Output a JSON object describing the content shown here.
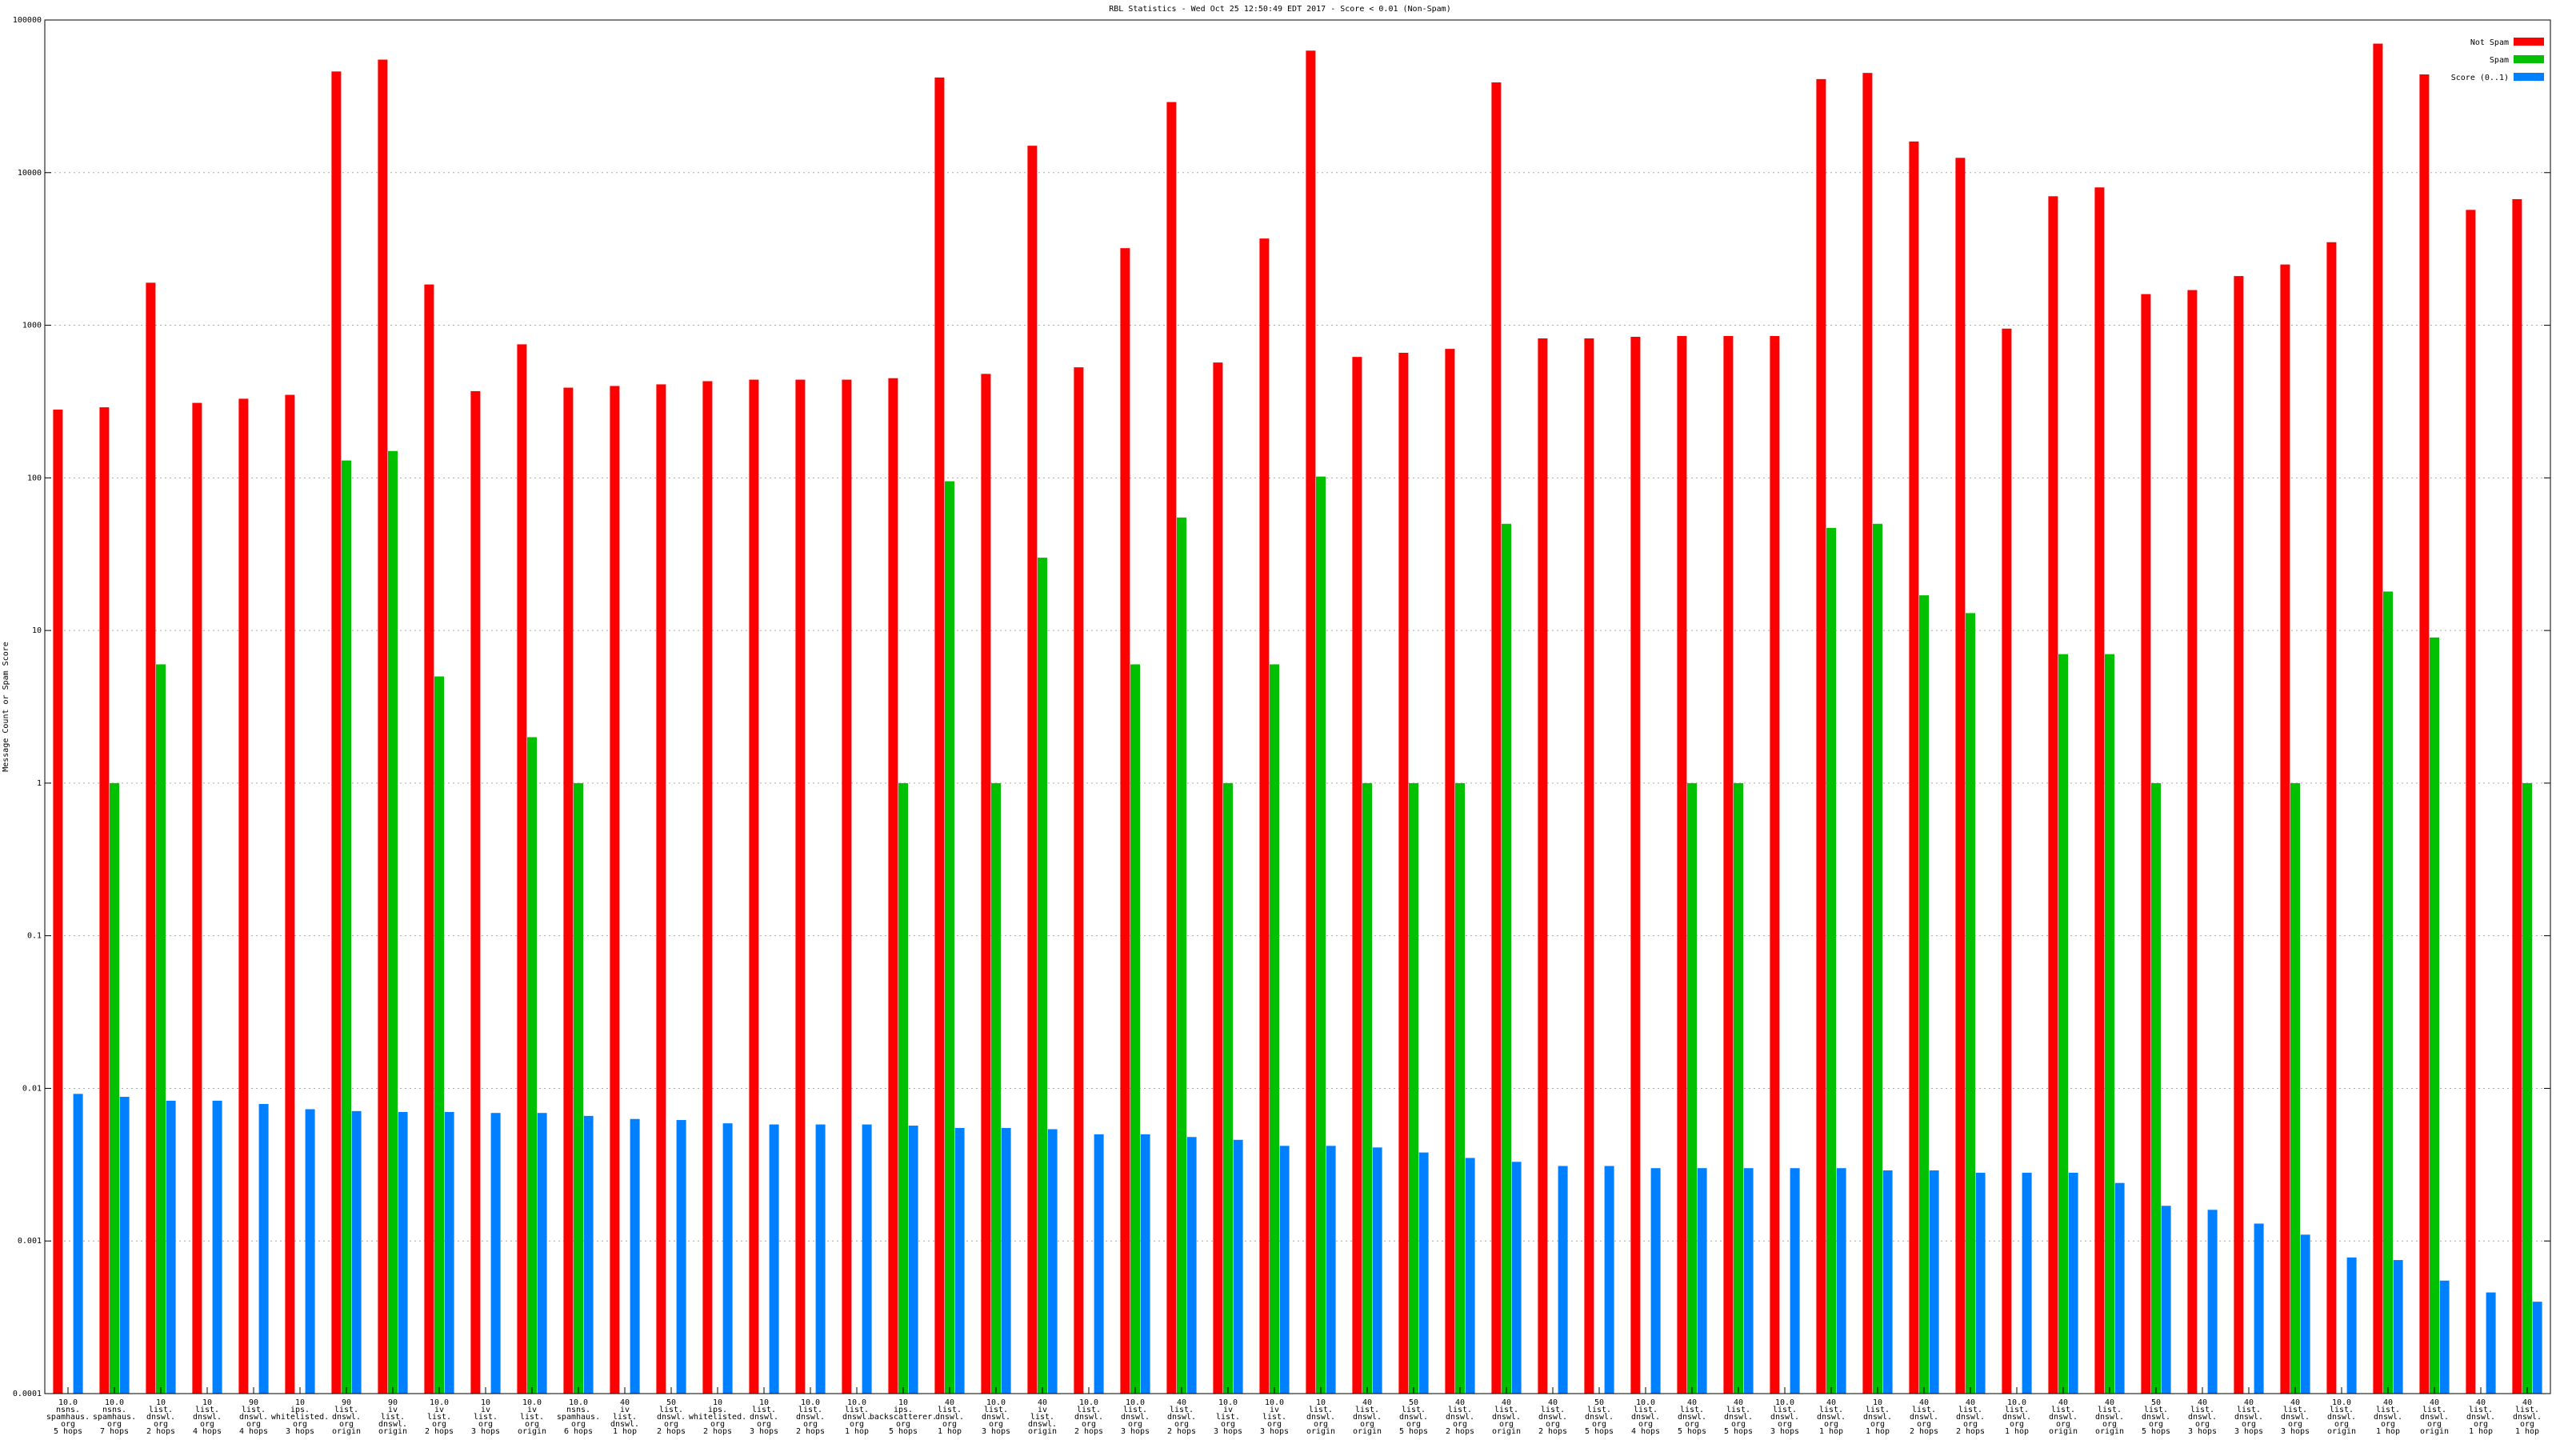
{
  "chart_data": {
    "type": "bar",
    "title": "RBL Statistics - Wed Oct 25 12:50:49 EDT 2017 - Score < 0.01 (Non-Spam)",
    "ylabel": "Message Count or Spam Score",
    "xlabel": "",
    "yscale": "log",
    "ylim": [
      0.0001,
      100000
    ],
    "yticks": [
      "100000",
      "10000",
      "1000",
      "100",
      "10",
      "1",
      "0.1",
      "0.01",
      "0.001",
      "0.0001"
    ],
    "grid": true,
    "legend_position": "top-right",
    "categories": [
      [
        "10.0",
        "nsns.",
        "spamhaus.",
        "org",
        "5 hops"
      ],
      [
        "10.0",
        "nsns.",
        "spamhaus.",
        "org",
        "7 hops"
      ],
      [
        "10",
        "list.",
        "dnswl.",
        "org",
        "2 hops"
      ],
      [
        "10",
        "list.",
        "dnswl.",
        "org",
        "4 hops"
      ],
      [
        "90",
        "list.",
        "dnswl.",
        "org",
        "4 hops"
      ],
      [
        "10",
        "ips.",
        "whitelisted.",
        "org",
        "3 hops"
      ],
      [
        "90",
        "list.",
        "dnswl.",
        "org",
        "origin"
      ],
      [
        "90",
        "iv",
        "list.",
        "dnswl.",
        "origin"
      ],
      [
        "10.0",
        "iv",
        "list.",
        "org",
        "2 hops"
      ],
      [
        "10",
        "iv",
        "list.",
        "org",
        "3 hops"
      ],
      [
        "10.0",
        "iv",
        "list.",
        "org",
        "origin"
      ],
      [
        "10.0",
        "nsns.",
        "spamhaus.",
        "org",
        "6 hops"
      ],
      [
        "40",
        "iv",
        "list.",
        "dnswl.",
        "1 hop"
      ],
      [
        "50",
        "list.",
        "dnswl.",
        "org",
        "2 hops"
      ],
      [
        "10",
        "ips.",
        "whitelisted.",
        "org",
        "2 hops"
      ],
      [
        "10",
        "list.",
        "dnswl.",
        "org",
        "3 hops"
      ],
      [
        "10.0",
        "list.",
        "dnswl.",
        "org",
        "2 hops"
      ],
      [
        "10.0",
        "list.",
        "dnswl.",
        "org",
        "1 hop"
      ],
      [
        "10",
        "ips.",
        "backscatterer.",
        "org",
        "5 hops"
      ],
      [
        "40",
        "list.",
        "dnswl.",
        "org",
        "1 hop"
      ],
      [
        "10.0",
        "list.",
        "dnswl.",
        "org",
        "3 hops"
      ],
      [
        "40",
        "iv",
        "list.",
        "dnswl.",
        "origin"
      ],
      [
        "10.0",
        "list.",
        "dnswl.",
        "org",
        "2 hops"
      ],
      [
        "10.0",
        "list.",
        "dnswl.",
        "org",
        "3 hops"
      ],
      [
        "40",
        "list.",
        "dnswl.",
        "org",
        "2 hops"
      ],
      [
        "10.0",
        "iv",
        "list.",
        "org",
        "3 hops"
      ],
      [
        "10.0",
        "iv",
        "list.",
        "org",
        "3 hops"
      ],
      [
        "10",
        "list.",
        "dnswl.",
        "org",
        "origin"
      ],
      [
        "40",
        "list.",
        "dnswl.",
        "org",
        "origin"
      ],
      [
        "50",
        "list.",
        "dnswl.",
        "org",
        "5 hops"
      ],
      [
        "40",
        "list.",
        "dnswl.",
        "org",
        "2 hops"
      ],
      [
        "40",
        "list.",
        "dnswl.",
        "org",
        "origin"
      ],
      [
        "40",
        "list.",
        "dnswl.",
        "org",
        "2 hops"
      ],
      [
        "50",
        "list.",
        "dnswl.",
        "org",
        "5 hops"
      ],
      [
        "10.0",
        "list.",
        "dnswl.",
        "org",
        "4 hops"
      ],
      [
        "40",
        "list.",
        "dnswl.",
        "org",
        "5 hops"
      ],
      [
        "40",
        "list.",
        "dnswl.",
        "org",
        "5 hops"
      ],
      [
        "10.0",
        "list.",
        "dnswl.",
        "org",
        "3 hops"
      ],
      [
        "40",
        "list.",
        "dnswl.",
        "org",
        "1 hop"
      ],
      [
        "10",
        "list.",
        "dnswl.",
        "org",
        "1 hop"
      ],
      [
        "40",
        "list.",
        "dnswl.",
        "org",
        "2 hops"
      ],
      [
        "40",
        "list.",
        "dnswl.",
        "org",
        "2 hops"
      ],
      [
        "10.0",
        "list.",
        "dnswl.",
        "org",
        "1 hop"
      ],
      [
        "40",
        "list.",
        "dnswl.",
        "org",
        "origin"
      ],
      [
        "40",
        "list.",
        "dnswl.",
        "org",
        "origin"
      ],
      [
        "50",
        "list.",
        "dnswl.",
        "org",
        "5 hops"
      ],
      [
        "40",
        "list.",
        "dnswl.",
        "org",
        "3 hops"
      ],
      [
        "40",
        "list.",
        "dnswl.",
        "org",
        "3 hops"
      ],
      [
        "40",
        "list.",
        "dnswl.",
        "org",
        "3 hops"
      ],
      [
        "10.0",
        "list.",
        "dnswl.",
        "org",
        "origin"
      ],
      [
        "40",
        "list.",
        "dnswl.",
        "org",
        "1 hop"
      ],
      [
        "40",
        "list.",
        "dnswl.",
        "org",
        "origin"
      ],
      [
        "40",
        "list.",
        "dnswl.",
        "org",
        "1 hop"
      ],
      [
        "40",
        "list.",
        "dnswl.",
        "org",
        "1 hop"
      ]
    ],
    "series": [
      {
        "name": "Not Spam",
        "color": "#ff0000",
        "values": [
          280,
          290,
          1900,
          310,
          330,
          350,
          46000,
          55000,
          1850,
          370,
          750,
          390,
          400,
          410,
          430,
          440,
          440,
          440,
          450,
          42000,
          480,
          15000,
          530,
          3200,
          29000,
          570,
          3700,
          63000,
          620,
          660,
          700,
          39000,
          820,
          820,
          840,
          850,
          850,
          850,
          41000,
          45000,
          16000,
          12500,
          950,
          7000,
          8000,
          1600,
          1700,
          2100,
          2500,
          3500,
          70000,
          44000,
          5700,
          6700
        ]
      },
      {
        "name": "Spam",
        "color": "#00c000",
        "values": [
          null,
          1,
          6,
          null,
          null,
          null,
          130,
          150,
          5,
          null,
          2,
          1,
          null,
          null,
          null,
          null,
          null,
          null,
          1,
          95,
          1,
          30,
          null,
          6,
          55,
          1,
          6,
          102,
          1,
          1,
          1,
          50,
          null,
          null,
          null,
          1,
          1,
          null,
          47,
          50,
          17,
          13,
          null,
          7,
          7,
          1,
          null,
          null,
          1,
          null,
          18,
          9,
          null,
          1
        ]
      },
      {
        "name": "Score (0..1)",
        "color": "#0080ff",
        "values": [
          0.0092,
          0.0088,
          0.0083,
          0.0083,
          0.0079,
          0.0073,
          0.0071,
          0.007,
          0.007,
          0.0069,
          0.0069,
          0.0066,
          0.0063,
          0.0062,
          0.0059,
          0.0058,
          0.0058,
          0.0058,
          0.0057,
          0.0055,
          0.0055,
          0.0054,
          0.005,
          0.005,
          0.0048,
          0.0046,
          0.0042,
          0.0042,
          0.0041,
          0.0038,
          0.0035,
          0.0033,
          0.0031,
          0.0031,
          0.003,
          0.003,
          0.003,
          0.003,
          0.003,
          0.0029,
          0.0029,
          0.0028,
          0.0028,
          0.0028,
          0.0024,
          0.0017,
          0.0016,
          0.0013,
          0.0011,
          0.00078,
          0.00075,
          0.00055,
          0.00046,
          0.0004
        ]
      }
    ]
  }
}
